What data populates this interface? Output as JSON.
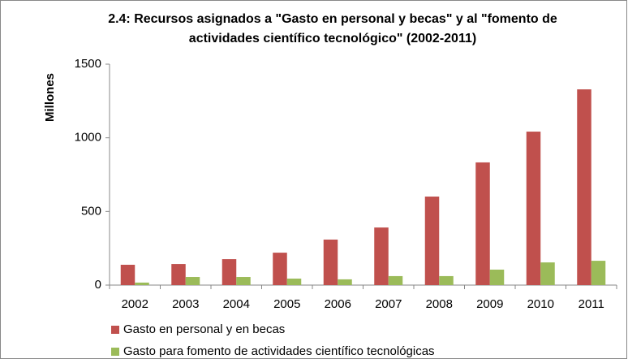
{
  "chart_data": {
    "type": "bar",
    "title": "2.4: Recursos asignados a \"Gasto en personal y becas\" y al \"fomento de actividades científico tecnológico\" (2002-2011)",
    "y_label": "Millones",
    "categories": [
      "2002",
      "2003",
      "2004",
      "2005",
      "2006",
      "2007",
      "2008",
      "2009",
      "2010",
      "2011"
    ],
    "series": [
      {
        "name": "Gasto en personal y en becas",
        "color": "#c0504d",
        "values": [
          138,
          143,
          176,
          220,
          309,
          391,
          601,
          833,
          1042,
          1329
        ]
      },
      {
        "name": "Gasto para fomento de actividades científico tecnológicas",
        "color": "#9bbb59",
        "values": [
          17,
          55,
          55,
          44,
          39,
          61,
          61,
          105,
          154,
          165
        ]
      }
    ],
    "ylim": [
      0,
      1500
    ],
    "yticks": [
      0,
      500,
      1000,
      1500
    ],
    "grid": false,
    "legend": "bottom"
  }
}
